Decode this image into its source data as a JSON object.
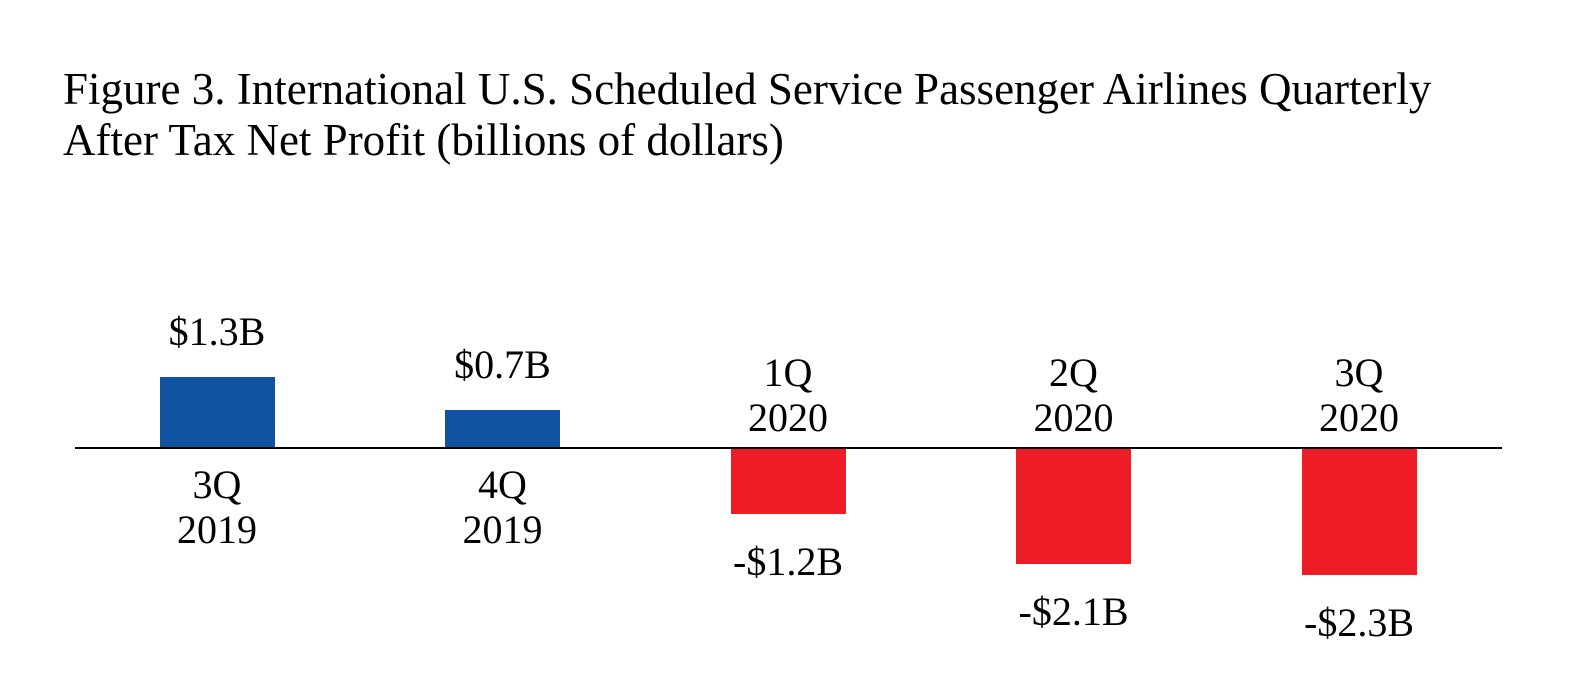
{
  "title": {
    "line1": "Figure 3. International U.S. Scheduled Service Passenger Airlines Quarterly",
    "line2": "After Tax Net Profit (billions of dollars)"
  },
  "chart_data": {
    "type": "bar",
    "title": "Figure 3. International U.S. Scheduled Service Passenger Airlines Quarterly After Tax Net Profit (billions of dollars)",
    "categories": [
      "3Q 2019",
      "4Q 2019",
      "1Q 2020",
      "2Q 2020",
      "3Q 2020"
    ],
    "category_lines": [
      [
        "3Q",
        "2019"
      ],
      [
        "4Q",
        "2019"
      ],
      [
        "1Q",
        "2020"
      ],
      [
        "2Q",
        "2020"
      ],
      [
        "3Q",
        "2020"
      ]
    ],
    "values": [
      1.3,
      0.7,
      -1.2,
      -2.1,
      -2.3
    ],
    "value_labels": [
      "$1.3B",
      "$0.7B",
      "-$1.2B",
      "-$2.1B",
      "-$2.3B"
    ],
    "unit": "billions of dollars",
    "xlabel": "",
    "ylabel": "",
    "ylim": [
      -2.5,
      1.5
    ],
    "grid": false,
    "legend": false,
    "positive_color": "#0F52A0",
    "negative_color": "#EE1C24",
    "axis_color": "#000000",
    "text_color": "#000000",
    "background_color": "#FFFFFF"
  }
}
